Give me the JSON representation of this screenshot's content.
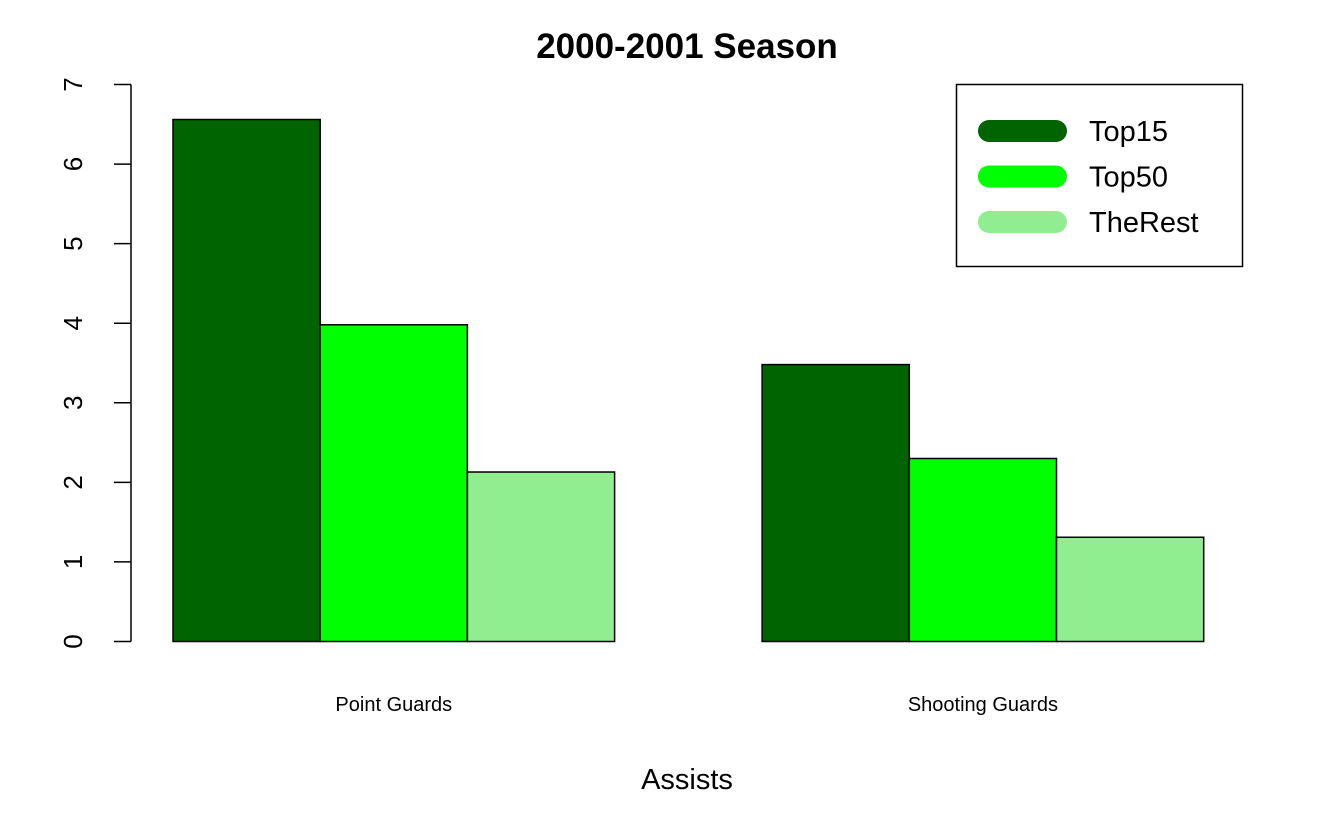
{
  "chart_data": {
    "type": "bar",
    "title": "2000-2001 Season",
    "xlabel": "Assists",
    "ylabel": "",
    "categories": [
      "Point Guards",
      "Shooting Guards"
    ],
    "series": [
      {
        "name": "Top15",
        "color": "#006400",
        "values": [
          6.56,
          3.48
        ]
      },
      {
        "name": "Top50",
        "color": "#00FF00",
        "values": [
          3.98,
          2.3
        ]
      },
      {
        "name": "TheRest",
        "color": "#90EE90",
        "values": [
          2.13,
          1.31
        ]
      }
    ],
    "ylim": [
      0,
      7
    ],
    "yticks": [
      "0",
      "1",
      "2",
      "3",
      "4",
      "5",
      "6",
      "7"
    ],
    "grid": false,
    "legend_position": "top-right"
  }
}
